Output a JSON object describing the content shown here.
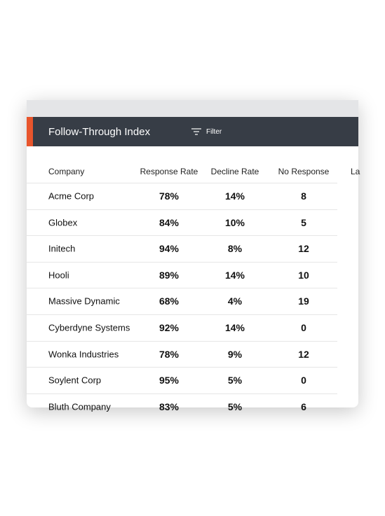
{
  "header": {
    "title": "Follow-Through Index",
    "filter": "Filter"
  },
  "table": {
    "columns": [
      "Company",
      "Response Rate",
      "Decline Rate",
      "No Response",
      "La"
    ],
    "rows": [
      [
        "Acme Corp",
        "78%",
        "14%",
        "8"
      ],
      [
        "Globex",
        "84%",
        "10%",
        "5"
      ],
      [
        "Initech",
        "94%",
        "8%",
        "12"
      ],
      [
        "Hooli",
        "89%",
        "14%",
        "10"
      ],
      [
        "Massive Dynamic",
        "68%",
        "4%",
        "19"
      ],
      [
        "Cyberdyne Systems",
        "92%",
        "14%",
        "0"
      ],
      [
        "Wonka Industries",
        "78%",
        "9%",
        "12"
      ],
      [
        "Soylent Corp",
        "95%",
        "5%",
        "0"
      ],
      [
        "Bluth Company",
        "83%",
        "5%",
        "6"
      ]
    ]
  }
}
